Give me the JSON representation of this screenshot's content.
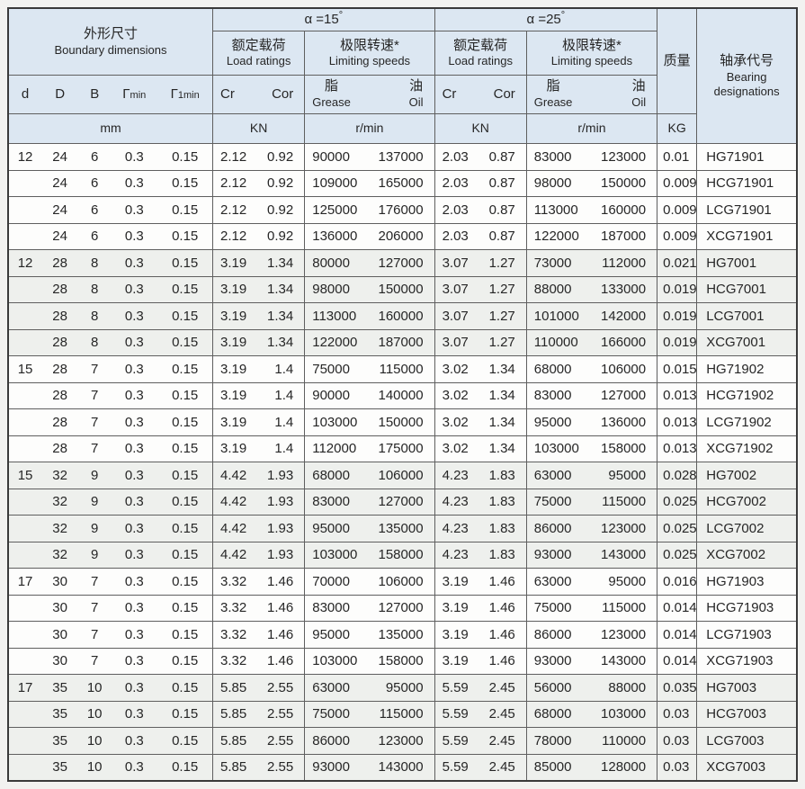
{
  "colors": {
    "header_bg": "#dce7f2",
    "row_bg": "#fdfdfc",
    "row_shaded_bg": "#eef0ed",
    "inner_border": "#5f5f5f",
    "outer_border": "#3a3a3a",
    "page_bg": "#f2f2f0",
    "text": "#262626"
  },
  "table": {
    "header": {
      "boundary_cn": "外形尺寸",
      "boundary_en": "Boundary dimensions",
      "alpha15": "α =15",
      "alpha25": "α =25",
      "degree": "°",
      "load_ratings_cn": "额定载荷",
      "load_ratings_en": "Load ratings",
      "limiting_speeds_cn": "极限转速*",
      "limiting_speeds_en": "Limiting speeds",
      "mass_cn": "质量",
      "desig_cn": "轴承代号",
      "desig_en1": "Bearing",
      "desig_en2": "designations",
      "col_d": "d",
      "col_D": "D",
      "col_B": "B",
      "rmin_base": "Γ",
      "rmin_sub": "min",
      "r1min_base": "Γ",
      "r1min_sub": "1min",
      "cr": "Cr",
      "cor": "Cor",
      "grease_cn": "脂",
      "grease_en": "Grease",
      "oil_cn": "油",
      "oil_en": "Oil",
      "unit_mm": "mm",
      "unit_kn15": "KN",
      "unit_rmin15": "r/min",
      "unit_kn25": "KN",
      "unit_rmin25": "r/min",
      "unit_kg": "KG"
    },
    "rows": [
      {
        "g": 0,
        "d": "12",
        "D": "24",
        "B": "6",
        "rmin": "0.3",
        "r1min": "0.15",
        "a15": [
          "2.12",
          "0.92"
        ],
        "s15": [
          "90000",
          "137000"
        ],
        "a25": [
          "2.03",
          "0.87"
        ],
        "s25": [
          "83000",
          "123000"
        ],
        "m": "0.01",
        "code": "HG71901"
      },
      {
        "g": 0,
        "d": "",
        "D": "24",
        "B": "6",
        "rmin": "0.3",
        "r1min": "0.15",
        "a15": [
          "2.12",
          "0.92"
        ],
        "s15": [
          "109000",
          "165000"
        ],
        "a25": [
          "2.03",
          "0.87"
        ],
        "s25": [
          "98000",
          "150000"
        ],
        "m": "0.009",
        "code": "HCG71901"
      },
      {
        "g": 0,
        "d": "",
        "D": "24",
        "B": "6",
        "rmin": "0.3",
        "r1min": "0.15",
        "a15": [
          "2.12",
          "0.92"
        ],
        "s15": [
          "125000",
          "176000"
        ],
        "a25": [
          "2.03",
          "0.87"
        ],
        "s25": [
          "113000",
          "160000"
        ],
        "m": "0.009",
        "code": "LCG71901"
      },
      {
        "g": 0,
        "d": "",
        "D": "24",
        "B": "6",
        "rmin": "0.3",
        "r1min": "0.15",
        "a15": [
          "2.12",
          "0.92"
        ],
        "s15": [
          "136000",
          "206000"
        ],
        "a25": [
          "2.03",
          "0.87"
        ],
        "s25": [
          "122000",
          "187000"
        ],
        "m": "0.009",
        "code": "XCG71901"
      },
      {
        "g": 1,
        "d": "12",
        "D": "28",
        "B": "8",
        "rmin": "0.3",
        "r1min": "0.15",
        "a15": [
          "3.19",
          "1.34"
        ],
        "s15": [
          "80000",
          "127000"
        ],
        "a25": [
          "3.07",
          "1.27"
        ],
        "s25": [
          "73000",
          "112000"
        ],
        "m": "0.021",
        "code": "HG7001"
      },
      {
        "g": 1,
        "d": "",
        "D": "28",
        "B": "8",
        "rmin": "0.3",
        "r1min": "0.15",
        "a15": [
          "3.19",
          "1.34"
        ],
        "s15": [
          "98000",
          "150000"
        ],
        "a25": [
          "3.07",
          "1.27"
        ],
        "s25": [
          "88000",
          "133000"
        ],
        "m": "0.019",
        "code": "HCG7001"
      },
      {
        "g": 1,
        "d": "",
        "D": "28",
        "B": "8",
        "rmin": "0.3",
        "r1min": "0.15",
        "a15": [
          "3.19",
          "1.34"
        ],
        "s15": [
          "113000",
          "160000"
        ],
        "a25": [
          "3.07",
          "1.27"
        ],
        "s25": [
          "101000",
          "142000"
        ],
        "m": "0.019",
        "code": "LCG7001"
      },
      {
        "g": 1,
        "d": "",
        "D": "28",
        "B": "8",
        "rmin": "0.3",
        "r1min": "0.15",
        "a15": [
          "3.19",
          "1.34"
        ],
        "s15": [
          "122000",
          "187000"
        ],
        "a25": [
          "3.07",
          "1.27"
        ],
        "s25": [
          "110000",
          "166000"
        ],
        "m": "0.019",
        "code": "XCG7001"
      },
      {
        "g": 2,
        "d": "15",
        "D": "28",
        "B": "7",
        "rmin": "0.3",
        "r1min": "0.15",
        "a15": [
          "3.19",
          "1.4"
        ],
        "s15": [
          "75000",
          "115000"
        ],
        "a25": [
          "3.02",
          "1.34"
        ],
        "s25": [
          "68000",
          "106000"
        ],
        "m": "0.015",
        "code": "HG71902"
      },
      {
        "g": 2,
        "d": "",
        "D": "28",
        "B": "7",
        "rmin": "0.3",
        "r1min": "0.15",
        "a15": [
          "3.19",
          "1.4"
        ],
        "s15": [
          "90000",
          "140000"
        ],
        "a25": [
          "3.02",
          "1.34"
        ],
        "s25": [
          "83000",
          "127000"
        ],
        "m": "0.013",
        "code": "HCG71902"
      },
      {
        "g": 2,
        "d": "",
        "D": "28",
        "B": "7",
        "rmin": "0.3",
        "r1min": "0.15",
        "a15": [
          "3.19",
          "1.4"
        ],
        "s15": [
          "103000",
          "150000"
        ],
        "a25": [
          "3.02",
          "1.34"
        ],
        "s25": [
          "95000",
          "136000"
        ],
        "m": "0.013",
        "code": "LCG71902"
      },
      {
        "g": 2,
        "d": "",
        "D": "28",
        "B": "7",
        "rmin": "0.3",
        "r1min": "0.15",
        "a15": [
          "3.19",
          "1.4"
        ],
        "s15": [
          "112000",
          "175000"
        ],
        "a25": [
          "3.02",
          "1.34"
        ],
        "s25": [
          "103000",
          "158000"
        ],
        "m": "0.013",
        "code": "XCG71902"
      },
      {
        "g": 3,
        "d": "15",
        "D": "32",
        "B": "9",
        "rmin": "0.3",
        "r1min": "0.15",
        "a15": [
          "4.42",
          "1.93"
        ],
        "s15": [
          "68000",
          "106000"
        ],
        "a25": [
          "4.23",
          "1.83"
        ],
        "s25": [
          "63000",
          "95000"
        ],
        "m": "0.028",
        "code": "HG7002"
      },
      {
        "g": 3,
        "d": "",
        "D": "32",
        "B": "9",
        "rmin": "0.3",
        "r1min": "0.15",
        "a15": [
          "4.42",
          "1.93"
        ],
        "s15": [
          "83000",
          "127000"
        ],
        "a25": [
          "4.23",
          "1.83"
        ],
        "s25": [
          "75000",
          "115000"
        ],
        "m": "0.025",
        "code": "HCG7002"
      },
      {
        "g": 3,
        "d": "",
        "D": "32",
        "B": "9",
        "rmin": "0.3",
        "r1min": "0.15",
        "a15": [
          "4.42",
          "1.93"
        ],
        "s15": [
          "95000",
          "135000"
        ],
        "a25": [
          "4.23",
          "1.83"
        ],
        "s25": [
          "86000",
          "123000"
        ],
        "m": "0.025",
        "code": "LCG7002"
      },
      {
        "g": 3,
        "d": "",
        "D": "32",
        "B": "9",
        "rmin": "0.3",
        "r1min": "0.15",
        "a15": [
          "4.42",
          "1.93"
        ],
        "s15": [
          "103000",
          "158000"
        ],
        "a25": [
          "4.23",
          "1.83"
        ],
        "s25": [
          "93000",
          "143000"
        ],
        "m": "0.025",
        "code": "XCG7002"
      },
      {
        "g": 4,
        "d": "17",
        "D": "30",
        "B": "7",
        "rmin": "0.3",
        "r1min": "0.15",
        "a15": [
          "3.32",
          "1.46"
        ],
        "s15": [
          "70000",
          "106000"
        ],
        "a25": [
          "3.19",
          "1.46"
        ],
        "s25": [
          "63000",
          "95000"
        ],
        "m": "0.016",
        "code": "HG71903"
      },
      {
        "g": 4,
        "d": "",
        "D": "30",
        "B": "7",
        "rmin": "0.3",
        "r1min": "0.15",
        "a15": [
          "3.32",
          "1.46"
        ],
        "s15": [
          "83000",
          "127000"
        ],
        "a25": [
          "3.19",
          "1.46"
        ],
        "s25": [
          "75000",
          "115000"
        ],
        "m": "0.014",
        "code": "HCG71903"
      },
      {
        "g": 4,
        "d": "",
        "D": "30",
        "B": "7",
        "rmin": "0.3",
        "r1min": "0.15",
        "a15": [
          "3.32",
          "1.46"
        ],
        "s15": [
          "95000",
          "135000"
        ],
        "a25": [
          "3.19",
          "1.46"
        ],
        "s25": [
          "86000",
          "123000"
        ],
        "m": "0.014",
        "code": "LCG71903"
      },
      {
        "g": 4,
        "d": "",
        "D": "30",
        "B": "7",
        "rmin": "0.3",
        "r1min": "0.15",
        "a15": [
          "3.32",
          "1.46"
        ],
        "s15": [
          "103000",
          "158000"
        ],
        "a25": [
          "3.19",
          "1.46"
        ],
        "s25": [
          "93000",
          "143000"
        ],
        "m": "0.014",
        "code": "XCG71903"
      },
      {
        "g": 5,
        "d": "17",
        "D": "35",
        "B": "10",
        "rmin": "0.3",
        "r1min": "0.15",
        "a15": [
          "5.85",
          "2.55"
        ],
        "s15": [
          "63000",
          "95000"
        ],
        "a25": [
          "5.59",
          "2.45"
        ],
        "s25": [
          "56000",
          "88000"
        ],
        "m": "0.035",
        "code": "HG7003"
      },
      {
        "g": 5,
        "d": "",
        "D": "35",
        "B": "10",
        "rmin": "0.3",
        "r1min": "0.15",
        "a15": [
          "5.85",
          "2.55"
        ],
        "s15": [
          "75000",
          "115000"
        ],
        "a25": [
          "5.59",
          "2.45"
        ],
        "s25": [
          "68000",
          "103000"
        ],
        "m": "0.03",
        "code": "HCG7003"
      },
      {
        "g": 5,
        "d": "",
        "D": "35",
        "B": "10",
        "rmin": "0.3",
        "r1min": "0.15",
        "a15": [
          "5.85",
          "2.55"
        ],
        "s15": [
          "86000",
          "123000"
        ],
        "a25": [
          "5.59",
          "2.45"
        ],
        "s25": [
          "78000",
          "110000"
        ],
        "m": "0.03",
        "code": "LCG7003"
      },
      {
        "g": 5,
        "d": "",
        "D": "35",
        "B": "10",
        "rmin": "0.3",
        "r1min": "0.15",
        "a15": [
          "5.85",
          "2.55"
        ],
        "s15": [
          "93000",
          "143000"
        ],
        "a25": [
          "5.59",
          "2.45"
        ],
        "s25": [
          "85000",
          "128000"
        ],
        "m": "0.03",
        "code": "XCG7003"
      }
    ]
  }
}
